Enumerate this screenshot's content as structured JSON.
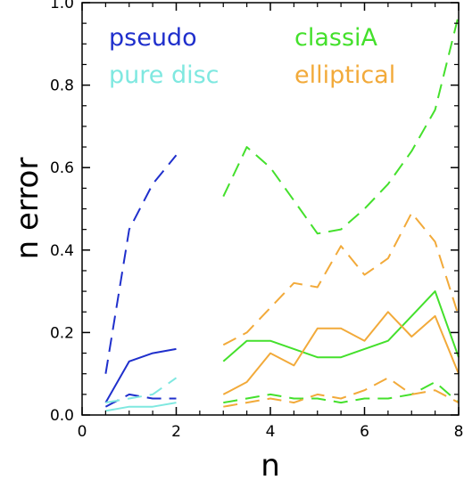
{
  "chart_data": {
    "type": "line",
    "xlabel": "n",
    "ylabel": "n  error",
    "xlim": [
      0,
      8
    ],
    "ylim": [
      0,
      1.0
    ],
    "xticks": [
      "0",
      "2",
      "4",
      "6",
      "8"
    ],
    "yticks": [
      "0.0",
      "0.2",
      "0.4",
      "0.6",
      "0.8",
      "1.0"
    ],
    "grid": false,
    "legend_placement": "top",
    "series": [
      {
        "name": "pseudo",
        "color": "#1f2fcc",
        "dash": "dashed",
        "x": [
          0.5,
          1.0,
          1.5,
          2.0
        ],
        "y": [
          0.1,
          0.45,
          0.56,
          0.63
        ]
      },
      {
        "name": "pseudo",
        "color": "#1f2fcc",
        "dash": "solid",
        "x": [
          0.5,
          1.0,
          1.5,
          2.0
        ],
        "y": [
          0.03,
          0.13,
          0.15,
          0.16
        ]
      },
      {
        "name": "pseudo",
        "color": "#1f2fcc",
        "dash": "dashed",
        "x": [
          0.5,
          1.0,
          1.5,
          2.0
        ],
        "y": [
          0.02,
          0.05,
          0.04,
          0.04
        ]
      },
      {
        "name": "pure disc",
        "color": "#7fe8e0",
        "dash": "dashed",
        "x": [
          0.5,
          1.0,
          1.5,
          2.0
        ],
        "y": [
          0.03,
          0.04,
          0.05,
          0.09
        ]
      },
      {
        "name": "pure disc",
        "color": "#7fe8e0",
        "dash": "solid",
        "x": [
          0.5,
          1.0,
          1.5,
          2.0
        ],
        "y": [
          0.01,
          0.02,
          0.02,
          0.03
        ]
      },
      {
        "name": "classiA",
        "color": "#44e02c",
        "dash": "dashed",
        "x": [
          3.0,
          3.5,
          4.0,
          4.5,
          5.0,
          5.5,
          6.0,
          6.5,
          7.0,
          7.5,
          8.0
        ],
        "y": [
          0.53,
          0.65,
          0.6,
          0.52,
          0.44,
          0.45,
          0.5,
          0.56,
          0.64,
          0.74,
          0.97
        ]
      },
      {
        "name": "classiA",
        "color": "#44e02c",
        "dash": "solid",
        "x": [
          3.0,
          3.5,
          4.0,
          4.5,
          5.0,
          5.5,
          6.0,
          6.5,
          7.0,
          7.5,
          8.0
        ],
        "y": [
          0.13,
          0.18,
          0.18,
          0.16,
          0.14,
          0.14,
          0.16,
          0.18,
          0.24,
          0.3,
          0.14
        ]
      },
      {
        "name": "classiA",
        "color": "#44e02c",
        "dash": "dashed",
        "x": [
          3.0,
          3.5,
          4.0,
          4.5,
          5.0,
          5.5,
          6.0,
          6.5,
          7.0,
          7.5,
          8.0
        ],
        "y": [
          0.03,
          0.04,
          0.05,
          0.04,
          0.04,
          0.03,
          0.04,
          0.04,
          0.05,
          0.08,
          0.03
        ]
      },
      {
        "name": "elliptical",
        "color": "#f2aa3a",
        "dash": "dashed",
        "x": [
          3.0,
          3.5,
          4.0,
          4.5,
          5.0,
          5.5,
          6.0,
          6.5,
          7.0,
          7.5,
          8.0
        ],
        "y": [
          0.17,
          0.2,
          0.26,
          0.32,
          0.31,
          0.41,
          0.34,
          0.38,
          0.49,
          0.42,
          0.24
        ]
      },
      {
        "name": "elliptical",
        "color": "#f2aa3a",
        "dash": "solid",
        "x": [
          3.0,
          3.5,
          4.0,
          4.5,
          5.0,
          5.5,
          6.0,
          6.5,
          7.0,
          7.5,
          8.0
        ],
        "y": [
          0.05,
          0.08,
          0.15,
          0.12,
          0.21,
          0.21,
          0.18,
          0.25,
          0.19,
          0.24,
          0.1
        ]
      },
      {
        "name": "elliptical",
        "color": "#f2aa3a",
        "dash": "dashed",
        "x": [
          3.0,
          3.5,
          4.0,
          4.5,
          5.0,
          5.5,
          6.0,
          6.5,
          7.0,
          7.5,
          8.0
        ],
        "y": [
          0.02,
          0.03,
          0.04,
          0.03,
          0.05,
          0.04,
          0.06,
          0.09,
          0.05,
          0.06,
          0.03
        ]
      }
    ],
    "legend": [
      {
        "label": "pseudo",
        "color": "#1f2fcc"
      },
      {
        "label": "pure disc",
        "color": "#7fe8e0"
      },
      {
        "label": "classiA",
        "color": "#44e02c"
      },
      {
        "label": "elliptical",
        "color": "#f2aa3a"
      }
    ]
  }
}
